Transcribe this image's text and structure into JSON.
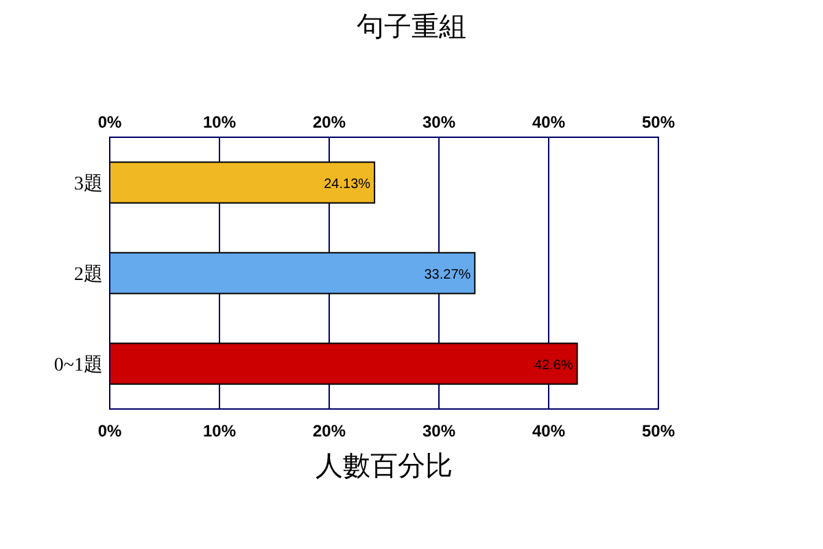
{
  "chart_data": {
    "type": "bar",
    "orientation": "horizontal",
    "title": "句子重組",
    "xlabel": "人數百分比",
    "categories": [
      "3題",
      "2題",
      "0~1題"
    ],
    "values": [
      24.13,
      33.27,
      42.6
    ],
    "value_labels": [
      "24.13%",
      "33.27%",
      "42.6%"
    ],
    "colors": [
      "#f0b823",
      "#66aaee",
      "#cc0000"
    ],
    "xlim": [
      0,
      50
    ],
    "xticks": [
      {
        "value": 0,
        "label": "0%"
      },
      {
        "value": 10,
        "label": "10%"
      },
      {
        "value": 20,
        "label": "20%"
      },
      {
        "value": 30,
        "label": "30%"
      },
      {
        "value": 40,
        "label": "40%"
      },
      {
        "value": 50,
        "label": "50%"
      }
    ],
    "x2lim": [
      0,
      50
    ],
    "x2ticks": [
      {
        "value": 0,
        "label": "0%"
      },
      {
        "value": 10,
        "label": "10%"
      },
      {
        "value": 20,
        "label": "20%"
      },
      {
        "value": 30,
        "label": "30%"
      },
      {
        "value": 40,
        "label": "40%"
      },
      {
        "value": 50,
        "label": "50%"
      }
    ],
    "grid": "x"
  }
}
